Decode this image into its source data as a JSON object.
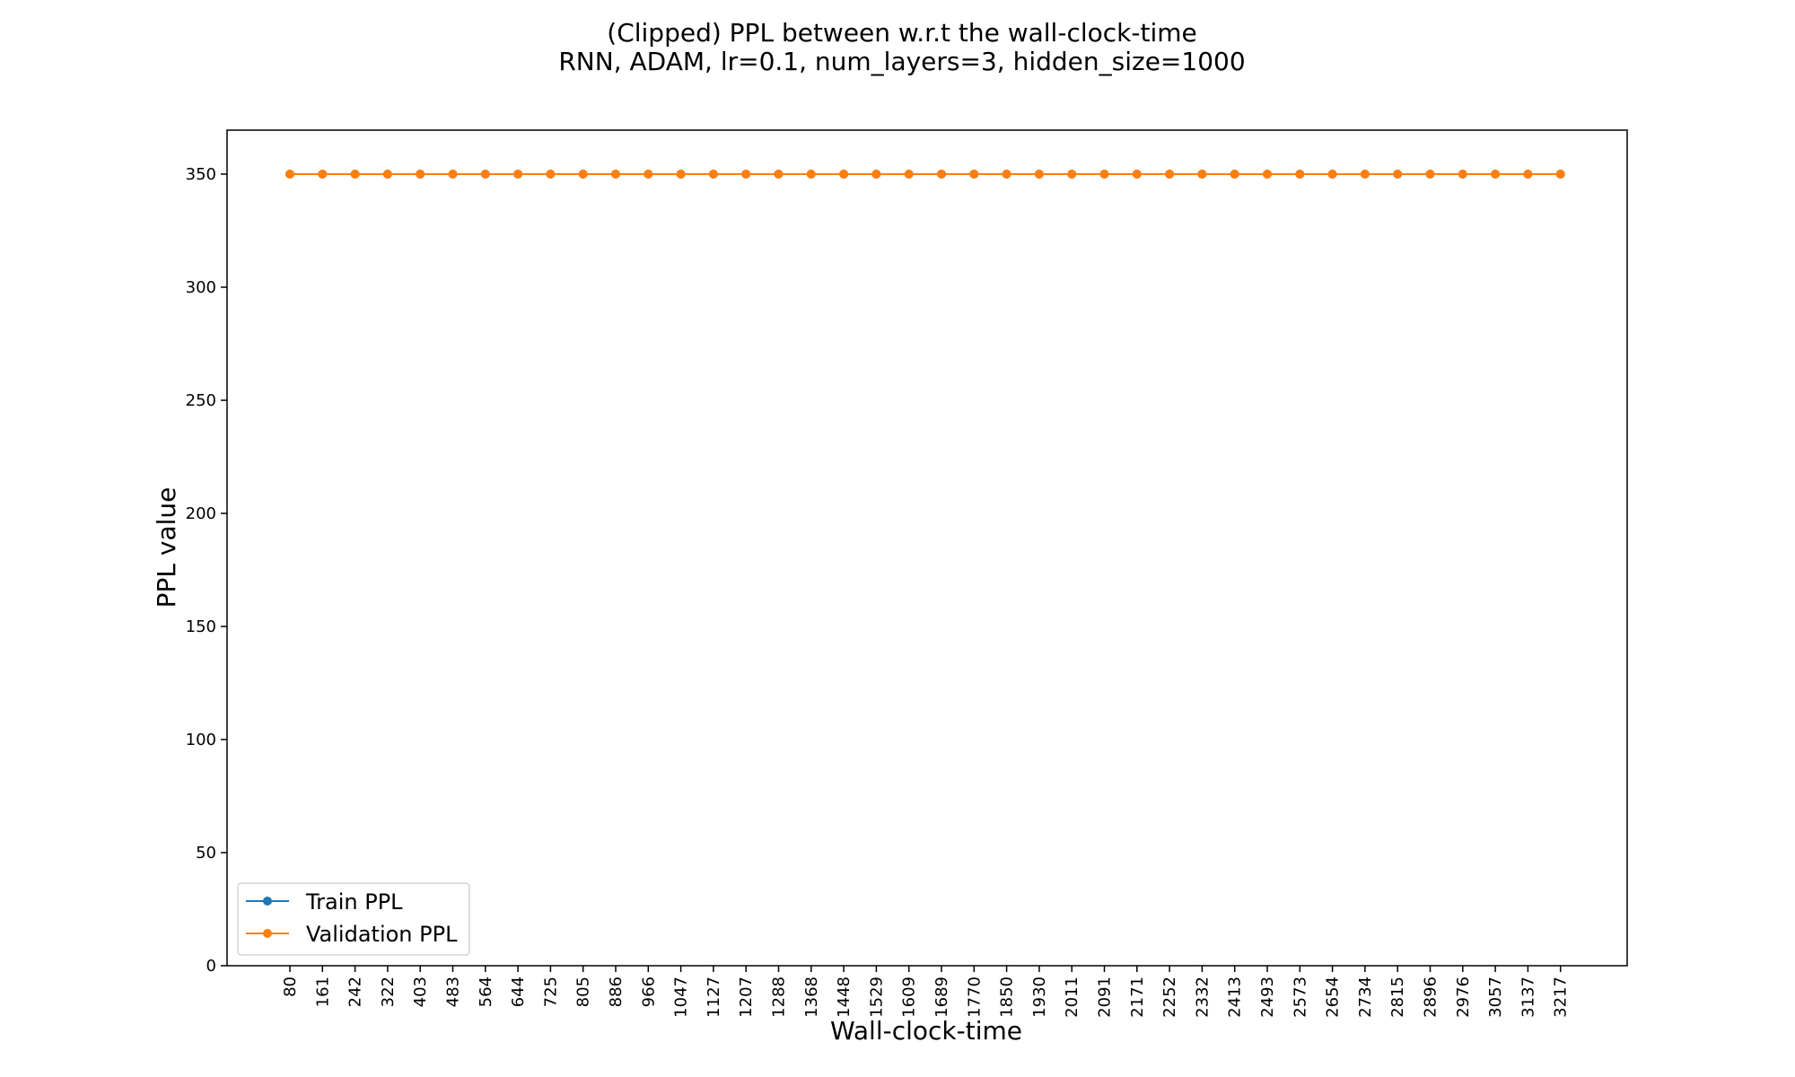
{
  "chart_data": {
    "type": "line",
    "title": "(Clipped) PPL between w.r.t the wall-clock-time",
    "subtitle": "RNN, ADAM, lr=0.1,  num_layers=3,  hidden_size=1000",
    "xlabel": "Wall-clock-time",
    "ylabel": "PPL value",
    "ylim": [
      0,
      350
    ],
    "yticks": [
      0,
      50,
      100,
      150,
      200,
      250,
      300,
      350
    ],
    "grid": false,
    "legend_position": "lower-left",
    "x": [
      "80",
      "161",
      "242",
      "322",
      "403",
      "483",
      "564",
      "644",
      "725",
      "805",
      "886",
      "966",
      "1047",
      "1127",
      "1207",
      "1288",
      "1368",
      "1448",
      "1529",
      "1609",
      "1689",
      "1770",
      "1850",
      "1930",
      "2011",
      "2091",
      "2171",
      "2252",
      "2332",
      "2413",
      "2493",
      "2573",
      "2654",
      "2734",
      "2815",
      "2896",
      "2976",
      "3057",
      "3137",
      "3217"
    ],
    "series": [
      {
        "name": "Train PPL",
        "color": "#1f77b4",
        "values": [
          350,
          350,
          350,
          350,
          350,
          350,
          350,
          350,
          350,
          350,
          350,
          350,
          350,
          350,
          350,
          350,
          350,
          350,
          350,
          350,
          350,
          350,
          350,
          350,
          350,
          350,
          350,
          350,
          350,
          350,
          350,
          350,
          350,
          350,
          350,
          350,
          350,
          350,
          350,
          350
        ]
      },
      {
        "name": "Validation PPL",
        "color": "#ff7f0e",
        "values": [
          350,
          350,
          350,
          350,
          350,
          350,
          350,
          350,
          350,
          350,
          350,
          350,
          350,
          350,
          350,
          350,
          350,
          350,
          350,
          350,
          350,
          350,
          350,
          350,
          350,
          350,
          350,
          350,
          350,
          350,
          350,
          350,
          350,
          350,
          350,
          350,
          350,
          350,
          350,
          350
        ]
      }
    ]
  }
}
